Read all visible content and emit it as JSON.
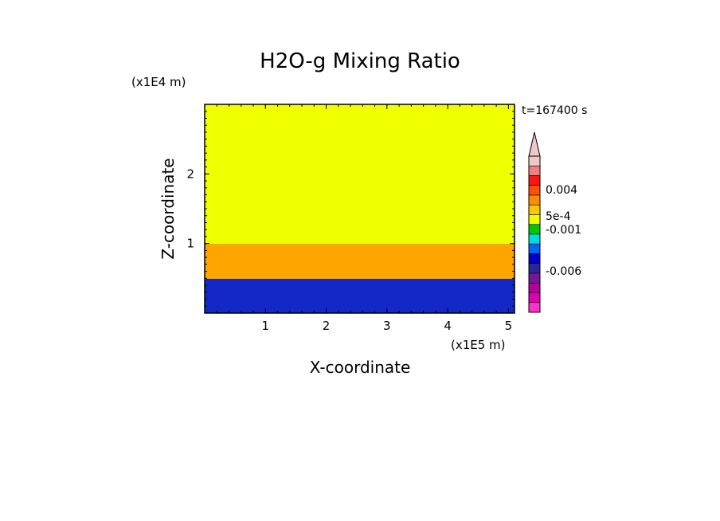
{
  "chart_data": {
    "type": "heatmap",
    "title": "H2O-g Mixing Ratio",
    "time_label": "t=167400 s",
    "xlabel": "X-coordinate",
    "ylabel": "Z-coordinate",
    "x_unit": "(x1E5 m)",
    "y_unit": "(x1E4 m)",
    "xlim": [
      0,
      5.1
    ],
    "ylim": [
      0,
      3
    ],
    "x_ticks": [
      1,
      2,
      3,
      4,
      5
    ],
    "y_ticks": [
      1,
      2
    ],
    "fields": [
      {
        "z_range": [
          1.0,
          3.0
        ],
        "level": "5e-4 to 0.001",
        "color": "#f0ff00"
      },
      {
        "z_range": [
          0.5,
          1.0
        ],
        "level": "0.001 to 0.004",
        "color": "#ffa500"
      },
      {
        "z_range": [
          0.0,
          0.5
        ],
        "level": "-0.001 to -0.006",
        "color": "#1428c8"
      }
    ],
    "colorbar": {
      "extend": "max",
      "tick_labels": [
        "0.004",
        "5e-4",
        "-0.001",
        "-0.006"
      ],
      "colors": [
        "#f0c8c8",
        "#f08080",
        "#ff1414",
        "#ff5000",
        "#ff8c00",
        "#ffc800",
        "#f0ff00",
        "#00c800",
        "#00dcdc",
        "#0064ff",
        "#0000c8",
        "#28289a",
        "#7814a0",
        "#b40096",
        "#dc00b4",
        "#ff32c8"
      ]
    }
  }
}
